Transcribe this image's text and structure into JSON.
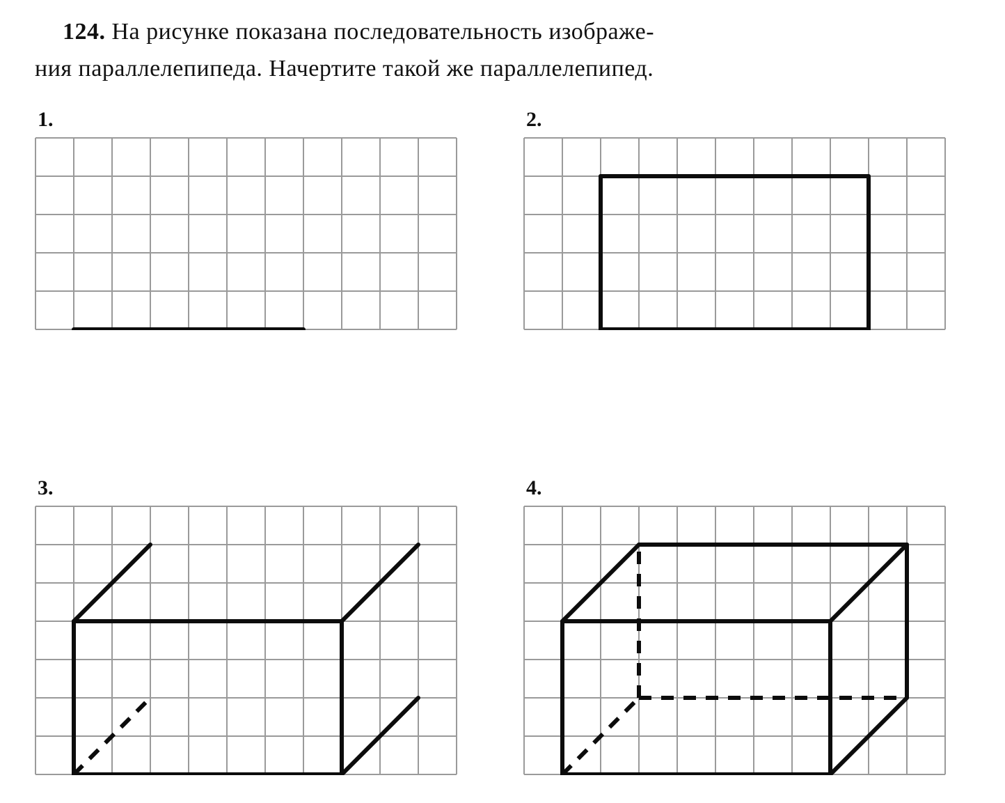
{
  "problem": {
    "number": "124.",
    "text_line1": "На рисунке показана последовательность изображе-",
    "text_line2": "ния параллелепипеда. Начертите такой же параллелепипед."
  },
  "grid": {
    "cell": 55,
    "cols": 11,
    "rows": 7,
    "stroke": "#9a9a9a",
    "stroke_width": 2,
    "background": "#ffffff"
  },
  "figure_stroke": "#0c0c0c",
  "figure_stroke_width": 6,
  "dash_pattern": "18 14",
  "panels": [
    {
      "label": "1.",
      "rows_visible": 5,
      "lines": [
        {
          "from": [
            1,
            5
          ],
          "to": [
            7,
            5
          ],
          "dashed": false
        }
      ]
    },
    {
      "label": "2.",
      "rows_visible": 5,
      "lines": [
        {
          "from": [
            2,
            5
          ],
          "to": [
            9,
            5
          ],
          "dashed": false
        },
        {
          "from": [
            2,
            5
          ],
          "to": [
            2,
            1
          ],
          "dashed": false
        },
        {
          "from": [
            2,
            1
          ],
          "to": [
            9,
            1
          ],
          "dashed": false
        },
        {
          "from": [
            9,
            1
          ],
          "to": [
            9,
            5
          ],
          "dashed": false
        }
      ]
    },
    {
      "label": "3.",
      "rows_visible": 7,
      "lines": [
        {
          "from": [
            1,
            7
          ],
          "to": [
            8,
            7
          ],
          "dashed": false
        },
        {
          "from": [
            1,
            7
          ],
          "to": [
            1,
            3
          ],
          "dashed": false
        },
        {
          "from": [
            1,
            3
          ],
          "to": [
            8,
            3
          ],
          "dashed": false
        },
        {
          "from": [
            8,
            3
          ],
          "to": [
            8,
            7
          ],
          "dashed": false
        },
        {
          "from": [
            1,
            3
          ],
          "to": [
            3,
            1
          ],
          "dashed": false
        },
        {
          "from": [
            8,
            3
          ],
          "to": [
            10,
            1
          ],
          "dashed": false
        },
        {
          "from": [
            8,
            7
          ],
          "to": [
            10,
            5
          ],
          "dashed": false
        },
        {
          "from": [
            1,
            7
          ],
          "to": [
            3,
            5
          ],
          "dashed": true
        }
      ]
    },
    {
      "label": "4.",
      "rows_visible": 7,
      "lines": [
        {
          "from": [
            1,
            7
          ],
          "to": [
            8,
            7
          ],
          "dashed": false
        },
        {
          "from": [
            1,
            7
          ],
          "to": [
            1,
            3
          ],
          "dashed": false
        },
        {
          "from": [
            1,
            3
          ],
          "to": [
            8,
            3
          ],
          "dashed": false
        },
        {
          "from": [
            8,
            3
          ],
          "to": [
            8,
            7
          ],
          "dashed": false
        },
        {
          "from": [
            1,
            3
          ],
          "to": [
            3,
            1
          ],
          "dashed": false
        },
        {
          "from": [
            8,
            3
          ],
          "to": [
            10,
            1
          ],
          "dashed": false
        },
        {
          "from": [
            8,
            7
          ],
          "to": [
            10,
            5
          ],
          "dashed": false
        },
        {
          "from": [
            3,
            1
          ],
          "to": [
            10,
            1
          ],
          "dashed": false
        },
        {
          "from": [
            10,
            1
          ],
          "to": [
            10,
            5
          ],
          "dashed": false
        },
        {
          "from": [
            1,
            7
          ],
          "to": [
            3,
            5
          ],
          "dashed": true
        },
        {
          "from": [
            3,
            5
          ],
          "to": [
            3,
            1
          ],
          "dashed": true
        },
        {
          "from": [
            3,
            5
          ],
          "to": [
            10,
            5
          ],
          "dashed": true
        }
      ]
    }
  ]
}
